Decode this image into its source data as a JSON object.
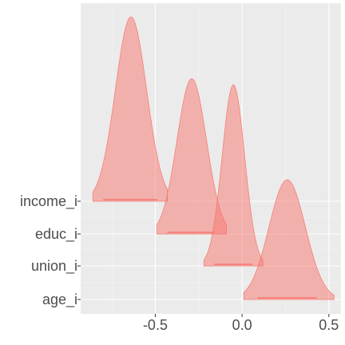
{
  "chart_data": {
    "type": "area",
    "title": "",
    "xlabel": "",
    "ylabel": "",
    "xlim": [
      -0.93,
      0.57
    ],
    "x_ticks": [
      -0.5,
      0.0,
      0.5
    ],
    "x_tick_labels": [
      "-0.5",
      "0.0",
      "0.5"
    ],
    "grid": true,
    "legend": "none",
    "categories": [
      "age_i",
      "union_i",
      "educ_i",
      "income_i"
    ],
    "fill_color": "#F8766D",
    "fill_opacity": 0.5,
    "panel_background": "#EBEBEB",
    "series": [
      {
        "name": "income_i",
        "mean": -0.64,
        "sd": 0.09,
        "x_min": -0.86,
        "x_max": -0.43,
        "peak_height": 5.7,
        "ci_low": -0.8,
        "ci_high": -0.49
      },
      {
        "name": "educ_i",
        "mean": -0.29,
        "sd": 0.085,
        "x_min": -0.49,
        "x_max": -0.09,
        "peak_height": 4.8,
        "ci_low": -0.43,
        "ci_high": -0.16
      },
      {
        "name": "union_i",
        "mean": -0.05,
        "sd": 0.065,
        "x_min": -0.22,
        "x_max": 0.12,
        "peak_height": 5.6,
        "ci_low": -0.16,
        "ci_high": 0.06
      },
      {
        "name": "age_i",
        "mean": 0.26,
        "sd": 0.105,
        "x_min": 0.01,
        "x_max": 0.53,
        "peak_height": 3.7,
        "ci_low": 0.09,
        "ci_high": 0.43
      }
    ]
  }
}
